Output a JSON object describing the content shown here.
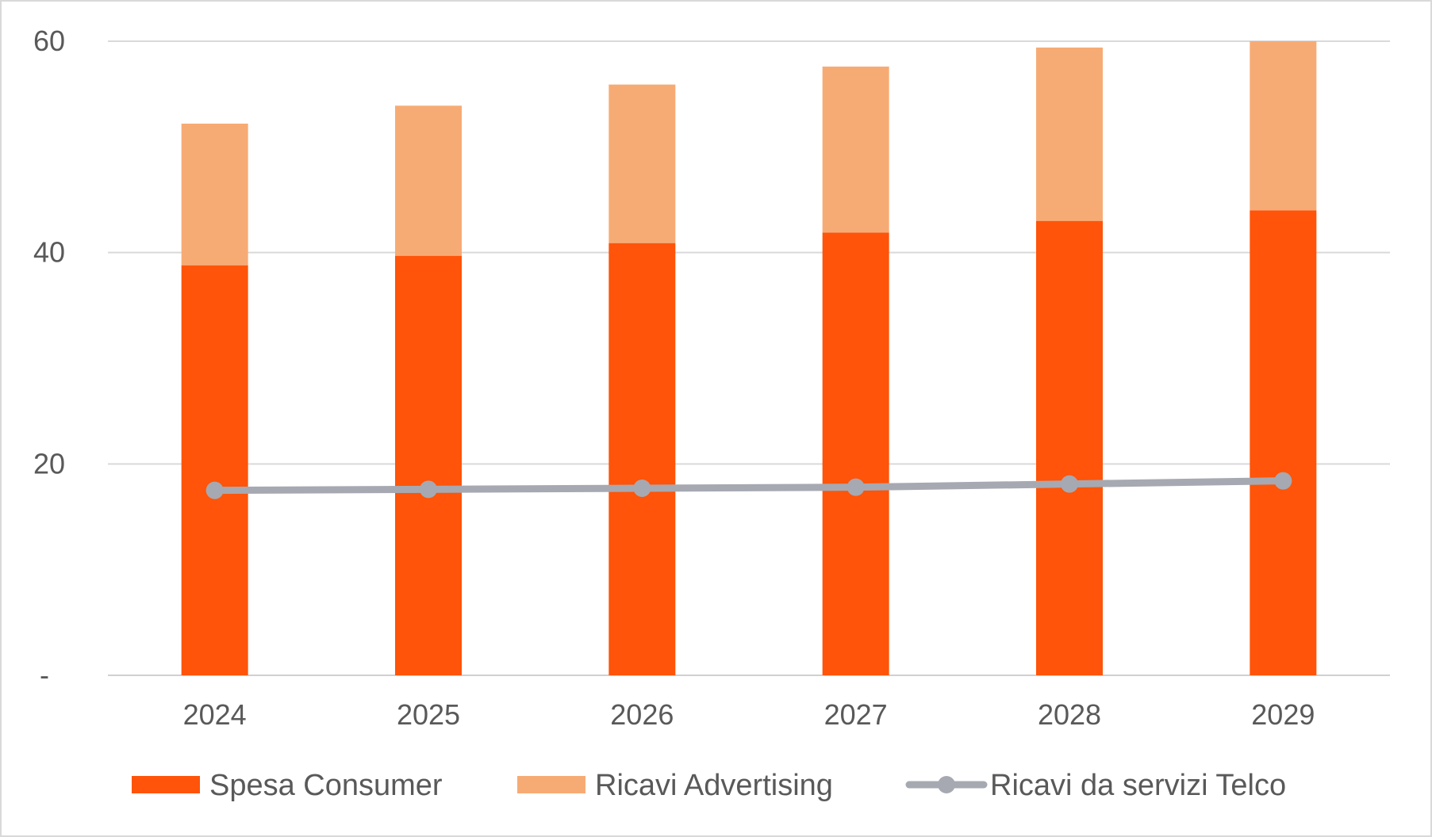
{
  "chart_data": {
    "type": "bar",
    "stacked": true,
    "categories": [
      "2024",
      "2025",
      "2026",
      "2027",
      "2028",
      "2029"
    ],
    "ylim": [
      0,
      60
    ],
    "yticks": [
      {
        "value": 0,
        "label": "-"
      },
      {
        "value": 20,
        "label": "20"
      },
      {
        "value": 40,
        "label": "40"
      },
      {
        "value": 60,
        "label": "60"
      }
    ],
    "grid": true,
    "legend_position": "bottom",
    "series": [
      {
        "name": "Spesa Consumer",
        "kind": "bar",
        "color": "#ff5409",
        "values": [
          38.8,
          39.7,
          40.9,
          41.9,
          43.0,
          44.0
        ]
      },
      {
        "name": "Ricavi Advertising",
        "kind": "bar",
        "color": "#f7ab74",
        "values": [
          13.4,
          14.2,
          15.0,
          15.7,
          16.4,
          16.0
        ]
      },
      {
        "name": "Ricavi da servizi Telco",
        "kind": "line",
        "color": "#a6a9b1",
        "values": [
          17.5,
          17.6,
          17.7,
          17.8,
          18.1,
          18.4
        ]
      }
    ]
  }
}
